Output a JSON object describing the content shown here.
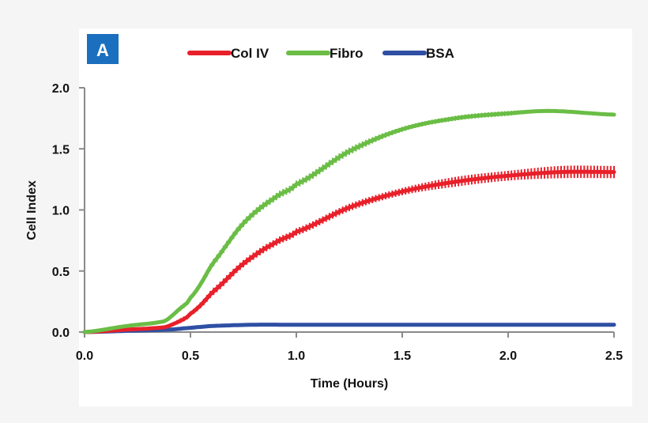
{
  "panel_label": "A",
  "panel_color": "#1a6fbf",
  "chart_data": {
    "type": "line",
    "title": "",
    "xlabel": "Time (Hours)",
    "ylabel": "Cell Index",
    "xlim": [
      0,
      2.5
    ],
    "ylim": [
      0,
      2.0
    ],
    "xticks": [
      "0.0",
      "0.5",
      "1.0",
      "1.5",
      "2.0",
      "2.5"
    ],
    "yticks": [
      "0.0",
      "0.5",
      "1.0",
      "1.5",
      "2.0"
    ],
    "grid": false,
    "legend_position": "top-center",
    "error_bars": true,
    "series": [
      {
        "name": "Col IV",
        "color": "#e8202a",
        "x": [
          0,
          0.2,
          0.38,
          0.45,
          0.5,
          0.6,
          0.75,
          0.9,
          1.0,
          1.25,
          1.5,
          1.75,
          2.0,
          2.25,
          2.5
        ],
        "y": [
          0,
          0.02,
          0.04,
          0.09,
          0.15,
          0.32,
          0.56,
          0.73,
          0.82,
          1.02,
          1.15,
          1.23,
          1.28,
          1.31,
          1.31
        ],
        "err": [
          0,
          0.01,
          0.01,
          0.02,
          0.02,
          0.03,
          0.03,
          0.03,
          0.03,
          0.03,
          0.03,
          0.04,
          0.04,
          0.05,
          0.05
        ]
      },
      {
        "name": "Fibro",
        "color": "#6abd45",
        "x": [
          0,
          0.2,
          0.38,
          0.45,
          0.5,
          0.6,
          0.75,
          0.9,
          1.0,
          1.25,
          1.5,
          1.75,
          2.0,
          2.2,
          2.5
        ],
        "y": [
          0,
          0.05,
          0.09,
          0.19,
          0.28,
          0.55,
          0.89,
          1.1,
          1.21,
          1.48,
          1.66,
          1.75,
          1.79,
          1.81,
          1.78
        ],
        "err": [
          0,
          0.01,
          0.01,
          0.02,
          0.02,
          0.03,
          0.03,
          0.03,
          0.03,
          0.03,
          0.02,
          0.02,
          0.02,
          0.01,
          0.01
        ]
      },
      {
        "name": "BSA",
        "color": "#2e4fa3",
        "x": [
          0,
          0.2,
          0.4,
          0.5,
          0.6,
          0.8,
          1.0,
          1.5,
          2.0,
          2.5
        ],
        "y": [
          0,
          0.01,
          0.02,
          0.035,
          0.05,
          0.06,
          0.06,
          0.06,
          0.06,
          0.06
        ],
        "err": [
          0,
          0,
          0,
          0,
          0,
          0,
          0,
          0,
          0,
          0
        ]
      }
    ]
  }
}
